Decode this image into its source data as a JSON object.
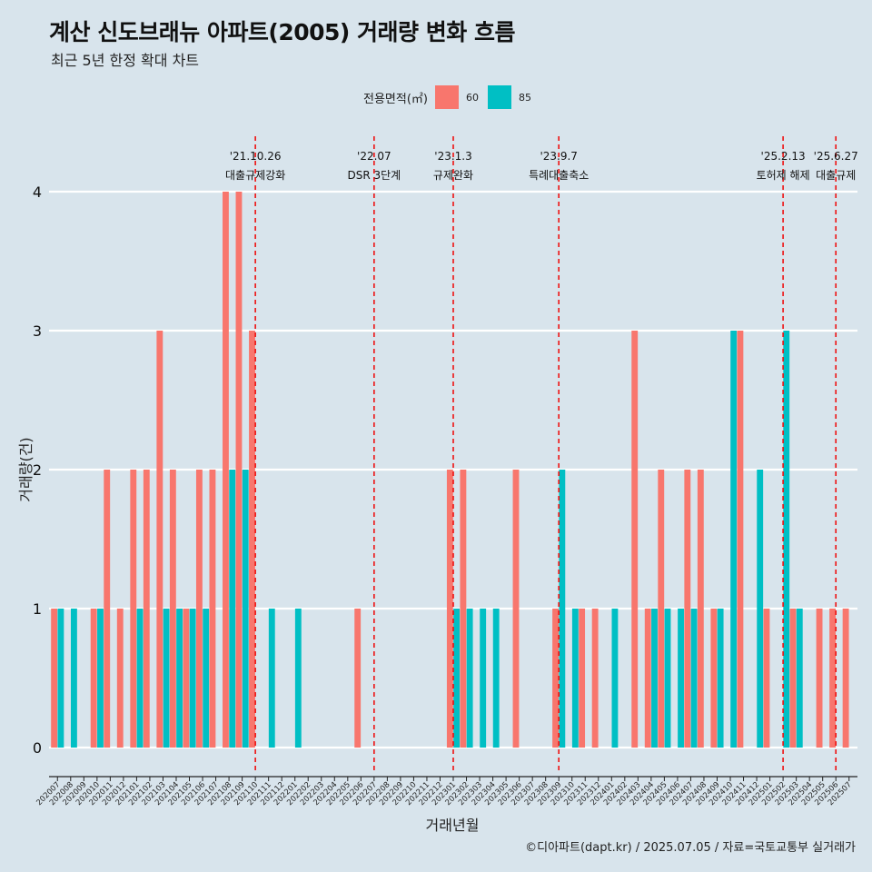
{
  "title": "계산 신도브래뉴 아파트(2005) 거래량 변화 흐름",
  "subtitle": "최근 5년 한정 확대 차트",
  "caption": "©디아파트(dapt.kr) / 2025.07.05 / 자료=국토교통부 실거래가",
  "legend": {
    "title": "전용면적(㎡)",
    "items": [
      {
        "label": "60",
        "color": "#f8766d"
      },
      {
        "label": "85",
        "color": "#00bfc4"
      }
    ]
  },
  "chart_data": {
    "type": "bar",
    "xlabel": "거래년월",
    "ylabel": "거래량(건)",
    "ylim": [
      0,
      4
    ],
    "yticks": [
      0,
      1,
      2,
      3,
      4
    ],
    "grid": true,
    "legend_position": "top",
    "categories": [
      "202007",
      "202008",
      "202009",
      "202010",
      "202011",
      "202012",
      "202101",
      "202102",
      "202103",
      "202104",
      "202105",
      "202106",
      "202107",
      "202108",
      "202109",
      "202110",
      "202111",
      "202112",
      "202201",
      "202202",
      "202203",
      "202204",
      "202205",
      "202206",
      "202207",
      "202208",
      "202209",
      "202210",
      "202211",
      "202212",
      "202301",
      "202302",
      "202303",
      "202304",
      "202305",
      "202306",
      "202307",
      "202308",
      "202309",
      "202310",
      "202311",
      "202312",
      "202401",
      "202402",
      "202403",
      "202404",
      "202405",
      "202406",
      "202407",
      "202408",
      "202409",
      "202410",
      "202411",
      "202412",
      "202501",
      "202502",
      "202503",
      "202504",
      "202505",
      "202506",
      "202507"
    ],
    "series": [
      {
        "name": "60",
        "color": "#f8766d",
        "values": [
          1,
          0,
          0,
          1,
          2,
          1,
          2,
          2,
          3,
          2,
          1,
          2,
          2,
          4,
          4,
          3,
          0,
          0,
          0,
          0,
          0,
          0,
          0,
          1,
          0,
          0,
          0,
          0,
          0,
          0,
          2,
          2,
          0,
          0,
          0,
          2,
          0,
          0,
          1,
          0,
          1,
          1,
          0,
          0,
          3,
          1,
          2,
          0,
          2,
          2,
          1,
          0,
          3,
          0,
          1,
          0,
          1,
          0,
          1,
          1,
          1
        ]
      },
      {
        "name": "85",
        "color": "#00bfc4",
        "values": [
          1,
          1,
          0,
          1,
          0,
          0,
          1,
          0,
          1,
          1,
          1,
          1,
          0,
          2,
          2,
          0,
          1,
          0,
          1,
          0,
          0,
          0,
          0,
          0,
          0,
          0,
          0,
          0,
          0,
          0,
          1,
          1,
          1,
          1,
          0,
          0,
          0,
          0,
          2,
          1,
          0,
          0,
          1,
          0,
          0,
          1,
          1,
          1,
          1,
          0,
          1,
          3,
          0,
          2,
          0,
          3,
          1,
          0,
          0,
          0,
          0
        ]
      }
    ],
    "annotations": [
      {
        "x": "202110",
        "date": "'21.10.26",
        "label": "대출규제강화"
      },
      {
        "x": "202207",
        "date": "'22.07",
        "label": "DSR 3단계"
      },
      {
        "x": "202301",
        "date": "'23.1.3",
        "label": "규제완화"
      },
      {
        "x": "202309",
        "date": "'23.9.7",
        "label": "특례대출축소"
      },
      {
        "x": "202502",
        "date": "'25.2.13",
        "label": "토허제 해제"
      },
      {
        "x": "202506",
        "date": "'25.6.27",
        "label": "대출규제"
      }
    ]
  }
}
